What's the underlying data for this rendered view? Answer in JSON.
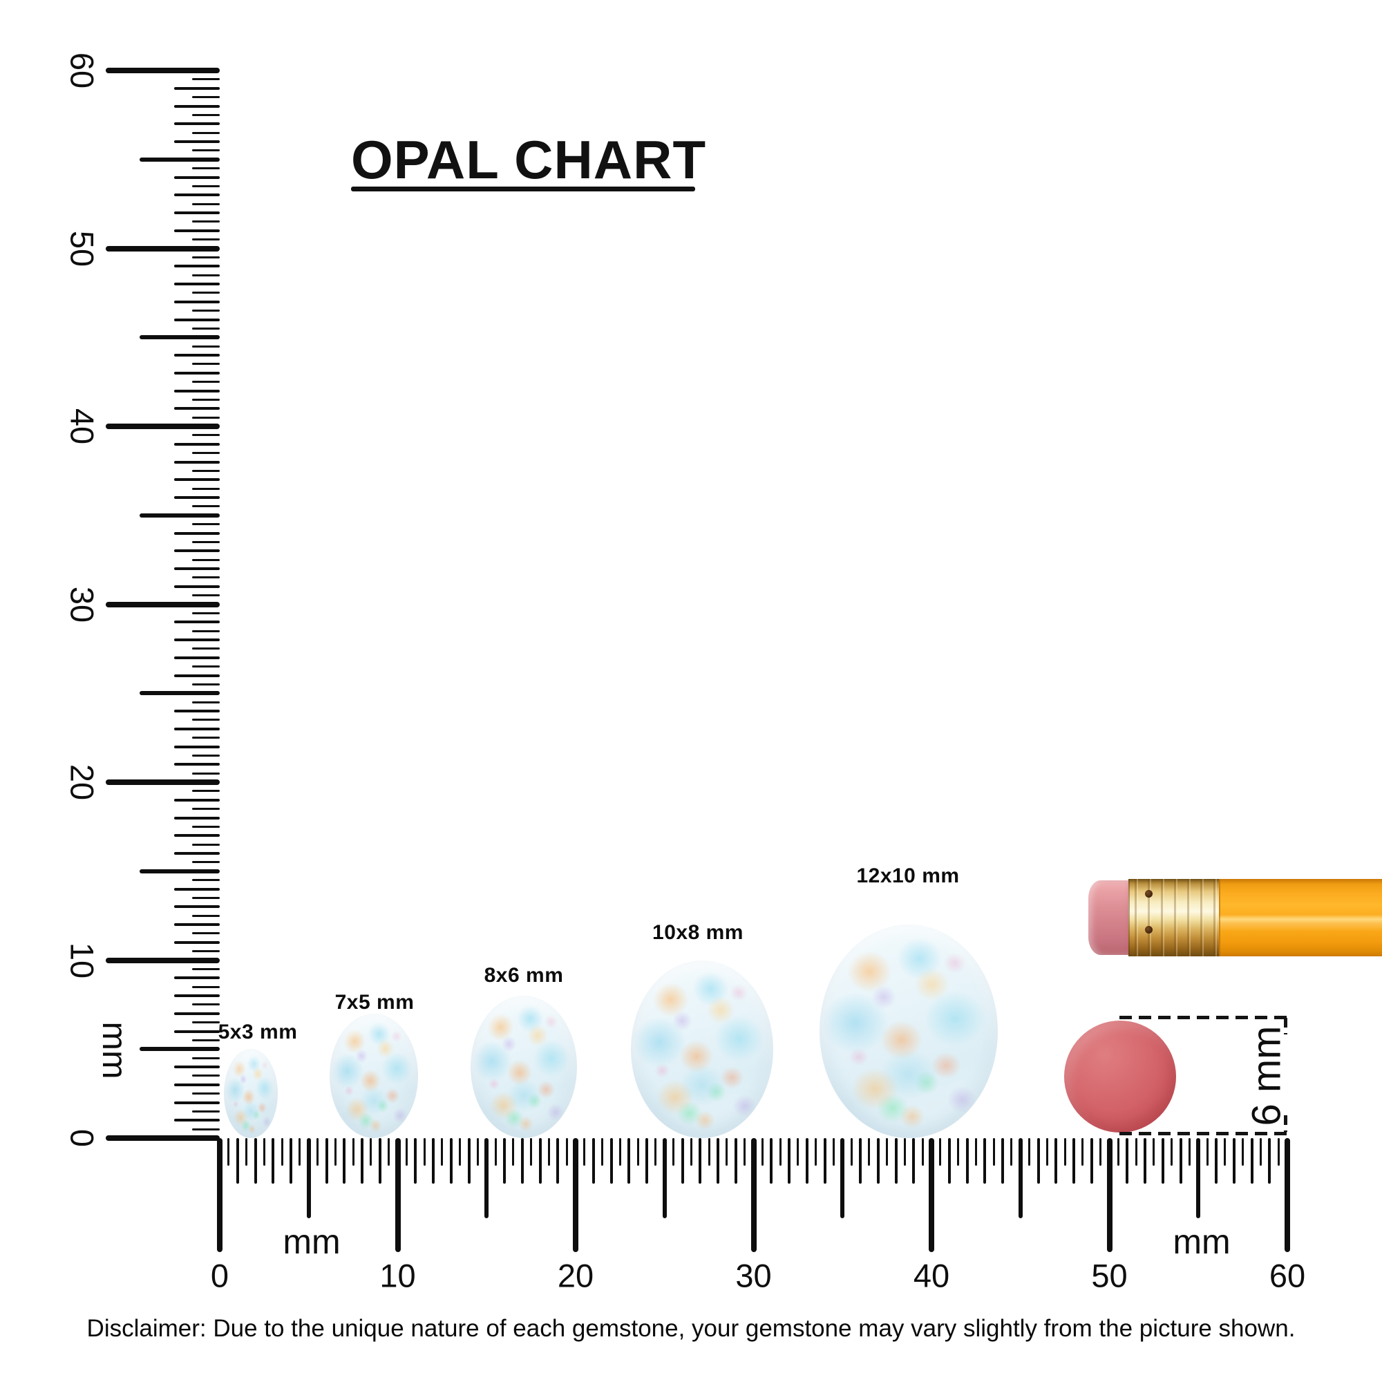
{
  "title": {
    "text": "OPAL CHART"
  },
  "rulers": {
    "vertical": {
      "unit": "mm",
      "numbers": [
        "0",
        "10",
        "20",
        "30",
        "40",
        "50",
        "60"
      ]
    },
    "horizontal": {
      "unit_left": "mm",
      "unit_right": "mm",
      "numbers": [
        "0",
        "10",
        "20",
        "30",
        "40",
        "50",
        "60"
      ]
    }
  },
  "opals": [
    {
      "label": "5x3 mm",
      "height_mm": 5,
      "width_mm": 3
    },
    {
      "label": "7x5 mm",
      "height_mm": 7,
      "width_mm": 5
    },
    {
      "label": "8x6 mm",
      "height_mm": 8,
      "width_mm": 6
    },
    {
      "label": "10x8 mm",
      "height_mm": 10,
      "width_mm": 8
    },
    {
      "label": "12x10 mm",
      "height_mm": 12,
      "width_mm": 10
    }
  ],
  "eraser_annotation": {
    "label": "6 mm",
    "diameter_mm": 6
  },
  "disclaimer": {
    "text": "Disclaimer: Due to the unique nature of each gemstone, your gemstone may vary slightly from the picture shown."
  },
  "colors": {
    "ink": "#0e0e0e",
    "opal_base": "#e8f4f9",
    "eraser_red": "#d26166",
    "pencil_orange": "#f9a01b",
    "ferrule_gold": "#e7c87e",
    "eraser_pink": "#d9868d"
  },
  "chart_data": {
    "type": "table",
    "title": "OPAL CHART",
    "categories": [
      "5x3 mm",
      "7x5 mm",
      "8x6 mm",
      "10x8 mm",
      "12x10 mm"
    ],
    "series": [
      {
        "name": "height_mm",
        "values": [
          5,
          7,
          8,
          10,
          12
        ]
      },
      {
        "name": "width_mm",
        "values": [
          3,
          5,
          6,
          8,
          10
        ]
      }
    ],
    "xlabel": "mm",
    "ylabel": "mm",
    "x_axis_range_mm": [
      0,
      60
    ],
    "y_axis_range_mm": [
      0,
      60
    ],
    "tick_step_mm": 0.5,
    "grid": false,
    "reference_objects": [
      {
        "name": "pencil-eraser-end"
      },
      {
        "name": "round-eraser",
        "diameter_mm": 6,
        "label": "6 mm"
      }
    ]
  }
}
